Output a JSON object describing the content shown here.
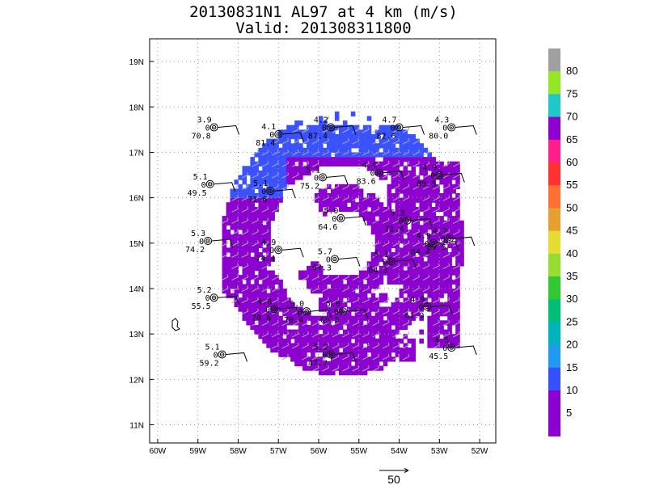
{
  "title_line1": "20130831N1 AL97 at 4 km (m/s)",
  "title_line2": "Valid: 201308311800",
  "map": {
    "lon_labels": [
      "60W",
      "59W",
      "58W",
      "57W",
      "56W",
      "55W",
      "54W",
      "53W",
      "52W"
    ],
    "lat_labels": [
      "19N",
      "18N",
      "17N",
      "16N",
      "15N",
      "14N",
      "13N",
      "12N",
      "11N"
    ],
    "lon_values": [
      -60,
      -59,
      -58,
      -57,
      -56,
      -55,
      -54,
      -53,
      -52
    ],
    "lat_values": [
      19,
      18,
      17,
      16,
      15,
      14,
      13,
      12,
      11
    ],
    "lon_range": [
      -60.2,
      -51.6
    ],
    "lat_range": [
      10.6,
      19.5
    ],
    "reference_vector_label": "50",
    "colors": {
      "purple": "#8c00d0",
      "blue": "#3a52ff",
      "light_blue": "#1c9af0",
      "wind_barb": "#aaaaaa"
    }
  },
  "colorbar": {
    "labels": [
      "80",
      "75",
      "70",
      "65",
      "60",
      "55",
      "50",
      "45",
      "40",
      "35",
      "30",
      "25",
      "20",
      "15",
      "10",
      "5"
    ],
    "colors": [
      "#a0a0a0",
      "#96e628",
      "#20c8c8",
      "#8c00d0",
      "#ff1e8c",
      "#ff3232",
      "#ff6e32",
      "#e6a032",
      "#e6dc32",
      "#96dc32",
      "#32c832",
      "#00be78",
      "#00b4be",
      "#1e9af0",
      "#3750ff",
      "#8c00d0",
      "#8c00d0"
    ]
  },
  "stations": [
    {
      "t": "3.9",
      "b": "70.8",
      "lon": -58.6,
      "lat": 17.55
    },
    {
      "t": "4.1",
      "b": "81.4",
      "lon": -57.0,
      "lat": 17.4
    },
    {
      "t": "4.2",
      "b": "87.4",
      "lon": -55.7,
      "lat": 17.55
    },
    {
      "t": "4.7",
      "b": "82.6",
      "lon": -54.0,
      "lat": 17.55
    },
    {
      "t": "4.3",
      "b": "80.0",
      "lon": -52.7,
      "lat": 17.55
    },
    {
      "t": "5.1",
      "b": "49.5",
      "lon": -58.7,
      "lat": 16.3
    },
    {
      "t": "5.1",
      "b": "71.6",
      "lon": -57.2,
      "lat": 16.15
    },
    {
      "t": "5.1",
      "b": "75.2",
      "lon": -55.9,
      "lat": 16.45
    },
    {
      "t": "4.4",
      "b": "83.6",
      "lon": -54.5,
      "lat": 16.55
    },
    {
      "t": "4.9",
      "b": "89.5",
      "lon": -53.0,
      "lat": 16.5
    },
    {
      "t": "5.0",
      "b": "64.6",
      "lon": -55.45,
      "lat": 15.55
    },
    {
      "t": "5.3",
      "b": "71.4",
      "lon": -53.8,
      "lat": 15.5
    },
    {
      "t": "5.3",
      "b": "74.2",
      "lon": -58.75,
      "lat": 15.05
    },
    {
      "t": "4.9",
      "b": "74.4",
      "lon": -57.0,
      "lat": 14.85
    },
    {
      "t": "5.7",
      "b": "67.3",
      "lon": -55.6,
      "lat": 14.65
    },
    {
      "t": "5.1",
      "b": "64.3",
      "lon": -54.2,
      "lat": 14.6
    },
    {
      "t": "4.9",
      "b": "84.4",
      "lon": -53.15,
      "lat": 15.0
    },
    {
      "t": "4.7",
      "b": "89.5",
      "lon": -52.75,
      "lat": 15.1
    },
    {
      "t": "5.2",
      "b": "55.5",
      "lon": -58.6,
      "lat": 13.8
    },
    {
      "t": "4.8",
      "b": "70.8",
      "lon": -57.1,
      "lat": 13.55
    },
    {
      "t": "5.0",
      "b": "70.4",
      "lon": -56.3,
      "lat": 13.5
    },
    {
      "t": "5.0",
      "b": "69.5",
      "lon": -55.4,
      "lat": 13.5
    },
    {
      "t": "4.9",
      "b": "61.9",
      "lon": -53.3,
      "lat": 13.6
    },
    {
      "t": "5.1",
      "b": "59.2",
      "lon": -58.4,
      "lat": 12.55
    },
    {
      "t": "5.2",
      "b": "47.7",
      "lon": -55.7,
      "lat": 12.55
    },
    {
      "t": "4.5",
      "b": "45.5",
      "lon": -52.7,
      "lat": 12.7
    }
  ]
}
